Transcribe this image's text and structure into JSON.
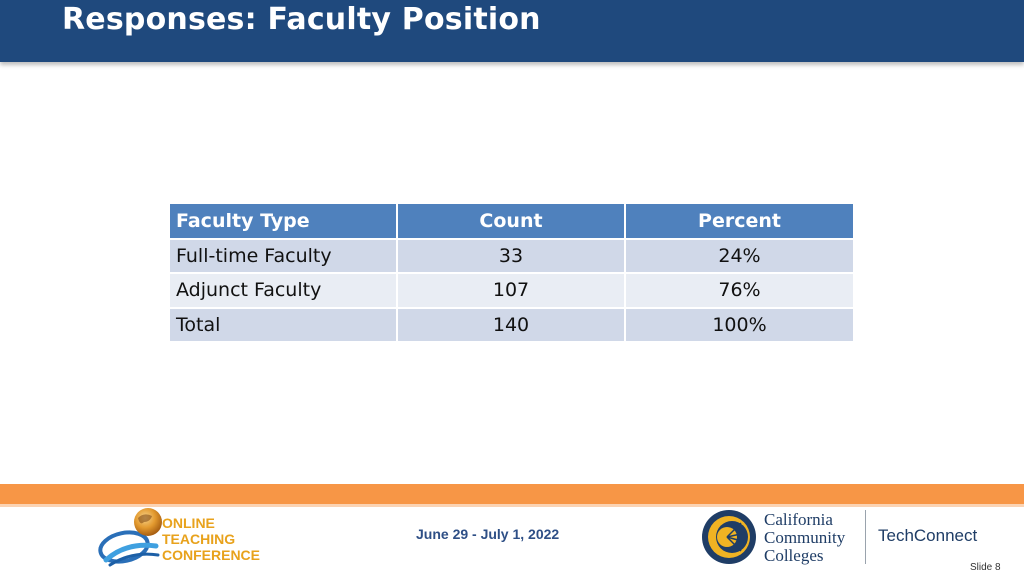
{
  "slide": {
    "title": "Responses: Faculty Position",
    "slide_number": "Slide 8"
  },
  "table": {
    "headers": [
      "Faculty Type",
      "Count",
      "Percent"
    ],
    "rows": [
      [
        "Full-time Faculty",
        "33",
        "24%"
      ],
      [
        "Adjunct Faculty",
        "107",
        "76%"
      ],
      [
        "Total",
        "140",
        "100%"
      ]
    ]
  },
  "footer": {
    "conference_logo": {
      "line1": "Online",
      "line2": "Teaching",
      "line3": "Conference"
    },
    "dates": "June 29 - July 1, 2022",
    "ccc_logo": {
      "line1": "California",
      "line2": "Community",
      "line3": "Colleges"
    },
    "techconnect": "TechConnect"
  },
  "colors": {
    "header_bg": "#1f497d",
    "table_header": "#4f81bd",
    "row_odd": "#d0d8e8",
    "row_even": "#e9edf4",
    "accent_orange": "#f79646"
  }
}
